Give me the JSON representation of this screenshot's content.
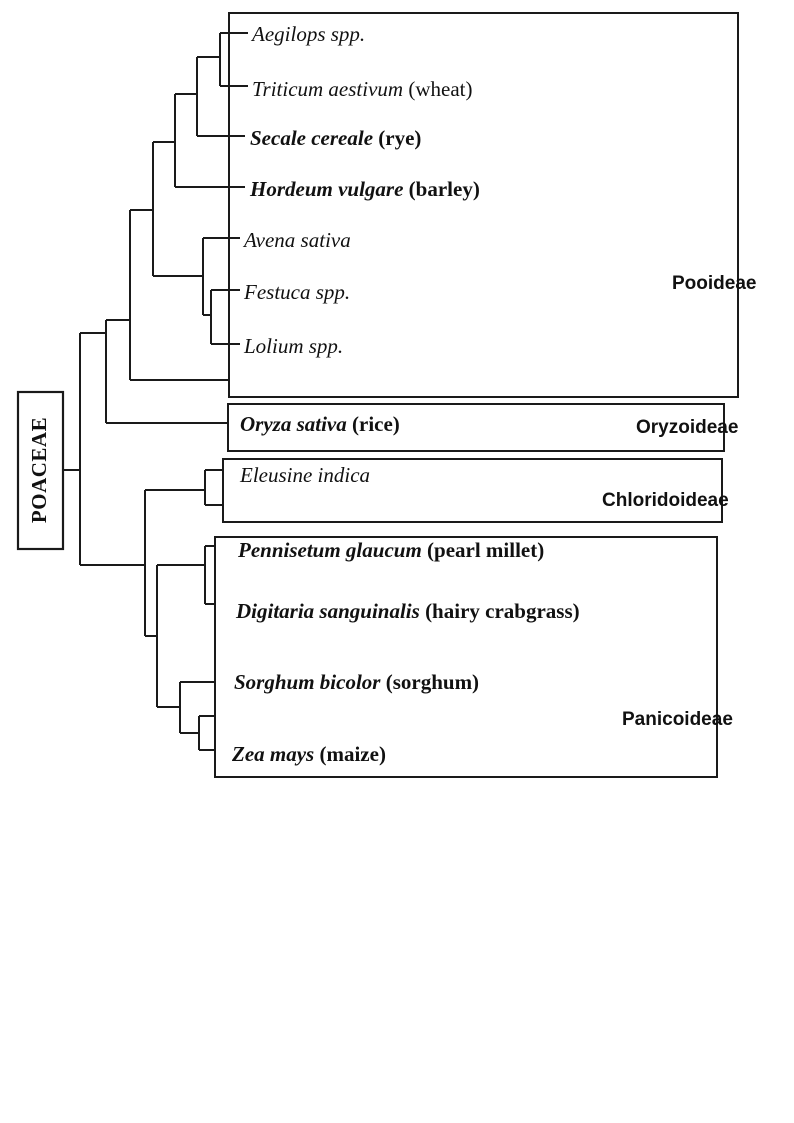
{
  "root_label": "POACEAE",
  "subfamilies": [
    {
      "key": "pooideae",
      "label": "Pooideae"
    },
    {
      "key": "oryzoideae",
      "label": "Oryzoideae"
    },
    {
      "key": "chloridoideae",
      "label": "Chloridoideae"
    },
    {
      "key": "panicoideae",
      "label": "Panicoideae"
    }
  ],
  "taxa": [
    {
      "id": "aegilops",
      "latin": "Aegilops spp.",
      "common": "",
      "bold": false
    },
    {
      "id": "triticum",
      "latin": "Triticum aestivum",
      "common": "(wheat)",
      "bold": false
    },
    {
      "id": "secale",
      "latin": "Secale cereale",
      "common": "(rye)",
      "bold": true
    },
    {
      "id": "hordeum",
      "latin": "Hordeum vulgare",
      "common": "(barley)",
      "bold": true
    },
    {
      "id": "avena",
      "latin": "Avena sativa",
      "common": "",
      "bold": false
    },
    {
      "id": "festuca",
      "latin": "Festuca spp.",
      "common": "",
      "bold": false
    },
    {
      "id": "lolium",
      "latin": "Lolium spp.",
      "common": "",
      "bold": false
    },
    {
      "id": "oryza",
      "latin": "Oryza sativa",
      "common": "(rice)",
      "bold": true
    },
    {
      "id": "eleusine",
      "latin": "Eleusine indica",
      "common": "",
      "bold": false
    },
    {
      "id": "pennisetum",
      "latin": "Pennisetum glaucum",
      "common": "(pearl millet)",
      "bold": true
    },
    {
      "id": "digitaria",
      "latin": "Digitaria sanguinalis",
      "common": "(hairy crabgrass)",
      "bold": true
    },
    {
      "id": "sorghum",
      "latin": "Sorghum bicolor",
      "common": "(sorghum)",
      "bold": true
    },
    {
      "id": "zea",
      "latin": "Zea mays",
      "common": "(maize)",
      "bold": true
    }
  ]
}
